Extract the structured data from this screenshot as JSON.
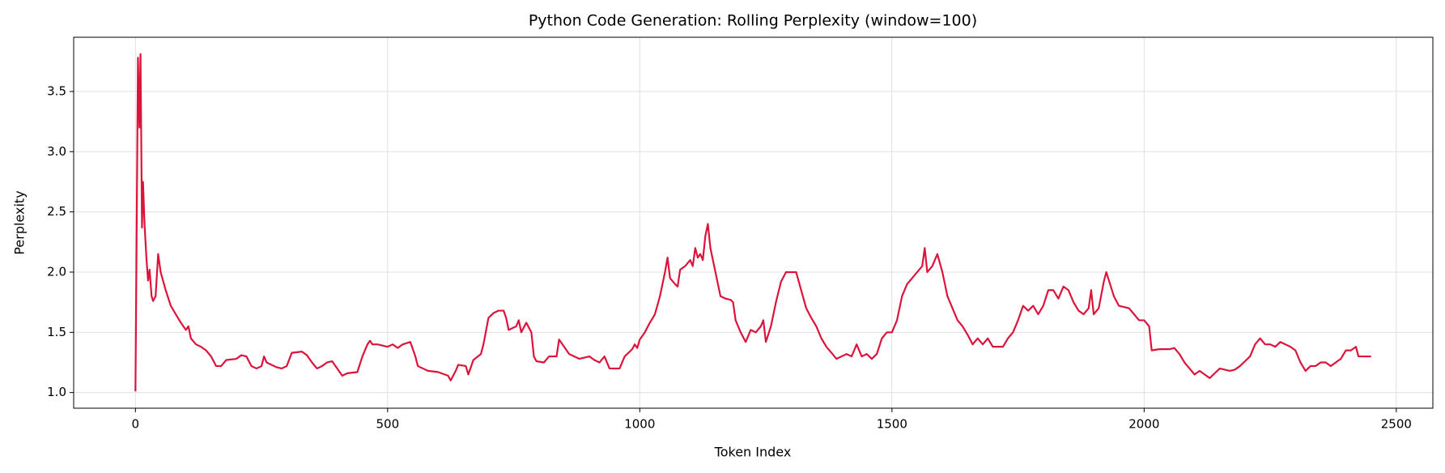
{
  "chart_data": {
    "type": "line",
    "title": "Python Code Generation: Rolling Perplexity (window=100)",
    "x_label": "Token Index",
    "y_label": "Perplexity",
    "grid": true,
    "xlim": [
      -122.5,
      2572.5
    ],
    "ylim": [
      0.87,
      3.95
    ],
    "xticks": [
      0,
      500,
      1000,
      1500,
      2000,
      2500
    ],
    "yticks": [
      {
        "value": 1.0,
        "label": "1.0"
      },
      {
        "value": 1.5,
        "label": "1.5"
      },
      {
        "value": 2.0,
        "label": "2.0"
      },
      {
        "value": 2.5,
        "label": "2.5"
      },
      {
        "value": 3.0,
        "label": "3.0"
      },
      {
        "value": 3.5,
        "label": "3.5"
      }
    ],
    "x": [
      0,
      5,
      8,
      10,
      13,
      15,
      18,
      22,
      25,
      28,
      32,
      35,
      40,
      45,
      50,
      60,
      70,
      80,
      90,
      100,
      105,
      110,
      120,
      130,
      140,
      150,
      160,
      170,
      180,
      200,
      210,
      220,
      230,
      240,
      250,
      255,
      260,
      270,
      280,
      290,
      300,
      310,
      330,
      340,
      350,
      360,
      370,
      380,
      390,
      400,
      410,
      420,
      440,
      450,
      460,
      465,
      470,
      480,
      500,
      510,
      520,
      530,
      545,
      555,
      560,
      570,
      580,
      600,
      620,
      625,
      635,
      640,
      655,
      660,
      670,
      685,
      690,
      700,
      710,
      720,
      730,
      735,
      740,
      755,
      760,
      765,
      775,
      785,
      790,
      795,
      810,
      820,
      835,
      840,
      850,
      860,
      880,
      900,
      910,
      920,
      930,
      940,
      960,
      970,
      985,
      990,
      995,
      1000,
      1010,
      1020,
      1030,
      1040,
      1050,
      1055,
      1060,
      1070,
      1075,
      1080,
      1090,
      1100,
      1105,
      1110,
      1115,
      1120,
      1125,
      1130,
      1135,
      1140,
      1150,
      1160,
      1170,
      1180,
      1185,
      1190,
      1200,
      1210,
      1220,
      1230,
      1240,
      1245,
      1250,
      1260,
      1270,
      1280,
      1290,
      1310,
      1320,
      1330,
      1340,
      1350,
      1360,
      1370,
      1380,
      1390,
      1400,
      1410,
      1420,
      1425,
      1430,
      1440,
      1450,
      1460,
      1470,
      1480,
      1490,
      1500,
      1510,
      1520,
      1530,
      1540,
      1550,
      1560,
      1565,
      1570,
      1580,
      1590,
      1600,
      1610,
      1620,
      1630,
      1640,
      1650,
      1660,
      1670,
      1680,
      1690,
      1700,
      1720,
      1730,
      1740,
      1750,
      1760,
      1770,
      1780,
      1790,
      1800,
      1810,
      1820,
      1830,
      1840,
      1850,
      1860,
      1870,
      1880,
      1890,
      1895,
      1900,
      1910,
      1920,
      1925,
      1940,
      1950,
      1970,
      1980,
      1990,
      2000,
      2010,
      2015,
      2030,
      2050,
      2060,
      2070,
      2080,
      2090,
      2100,
      2110,
      2120,
      2130,
      2140,
      2150,
      2170,
      2180,
      2190,
      2200,
      2210,
      2220,
      2230,
      2240,
      2250,
      2260,
      2270,
      2280,
      2290,
      2300,
      2310,
      2320,
      2330,
      2340,
      2350,
      2360,
      2370,
      2380,
      2390,
      2400,
      2410,
      2420,
      2425,
      2450
    ],
    "series": [
      {
        "color": "#dc143c",
        "values": [
          1.01,
          3.78,
          3.2,
          3.81,
          2.37,
          2.75,
          2.4,
          2.1,
          1.93,
          2.02,
          1.8,
          1.76,
          1.8,
          2.15,
          2.0,
          1.85,
          1.72,
          1.65,
          1.58,
          1.52,
          1.55,
          1.45,
          1.4,
          1.38,
          1.35,
          1.3,
          1.22,
          1.22,
          1.27,
          1.28,
          1.31,
          1.3,
          1.22,
          1.2,
          1.22,
          1.3,
          1.25,
          1.23,
          1.21,
          1.2,
          1.22,
          1.33,
          1.34,
          1.31,
          1.25,
          1.2,
          1.22,
          1.25,
          1.26,
          1.2,
          1.14,
          1.16,
          1.17,
          1.3,
          1.4,
          1.43,
          1.4,
          1.4,
          1.38,
          1.4,
          1.37,
          1.4,
          1.42,
          1.3,
          1.22,
          1.2,
          1.18,
          1.17,
          1.14,
          1.1,
          1.18,
          1.23,
          1.22,
          1.15,
          1.27,
          1.32,
          1.4,
          1.62,
          1.66,
          1.68,
          1.68,
          1.62,
          1.52,
          1.55,
          1.6,
          1.5,
          1.58,
          1.5,
          1.3,
          1.26,
          1.25,
          1.3,
          1.3,
          1.44,
          1.38,
          1.32,
          1.28,
          1.3,
          1.27,
          1.25,
          1.3,
          1.2,
          1.2,
          1.3,
          1.36,
          1.4,
          1.37,
          1.44,
          1.5,
          1.58,
          1.65,
          1.8,
          2.0,
          2.12,
          1.95,
          1.9,
          1.88,
          2.02,
          2.05,
          2.1,
          2.05,
          2.2,
          2.12,
          2.15,
          2.1,
          2.3,
          2.4,
          2.2,
          2.0,
          1.8,
          1.78,
          1.77,
          1.75,
          1.6,
          1.5,
          1.42,
          1.52,
          1.5,
          1.55,
          1.6,
          1.42,
          1.55,
          1.75,
          1.92,
          2.0,
          2.0,
          1.85,
          1.7,
          1.62,
          1.55,
          1.45,
          1.38,
          1.33,
          1.28,
          1.3,
          1.32,
          1.3,
          1.35,
          1.4,
          1.3,
          1.32,
          1.28,
          1.32,
          1.45,
          1.5,
          1.5,
          1.6,
          1.8,
          1.9,
          1.95,
          2.0,
          2.05,
          2.2,
          2.0,
          2.05,
          2.15,
          2.0,
          1.8,
          1.7,
          1.6,
          1.55,
          1.48,
          1.4,
          1.45,
          1.4,
          1.45,
          1.38,
          1.38,
          1.45,
          1.5,
          1.6,
          1.72,
          1.68,
          1.72,
          1.65,
          1.72,
          1.85,
          1.85,
          1.78,
          1.88,
          1.85,
          1.75,
          1.68,
          1.65,
          1.7,
          1.85,
          1.65,
          1.7,
          1.92,
          2.0,
          1.8,
          1.72,
          1.7,
          1.65,
          1.6,
          1.6,
          1.55,
          1.35,
          1.36,
          1.36,
          1.37,
          1.32,
          1.25,
          1.2,
          1.15,
          1.18,
          1.15,
          1.12,
          1.16,
          1.2,
          1.18,
          1.19,
          1.22,
          1.26,
          1.3,
          1.4,
          1.45,
          1.4,
          1.4,
          1.38,
          1.42,
          1.4,
          1.38,
          1.35,
          1.25,
          1.18,
          1.22,
          1.22,
          1.25,
          1.25,
          1.22,
          1.25,
          1.28,
          1.35,
          1.35,
          1.38,
          1.3,
          1.3
        ]
      }
    ]
  }
}
